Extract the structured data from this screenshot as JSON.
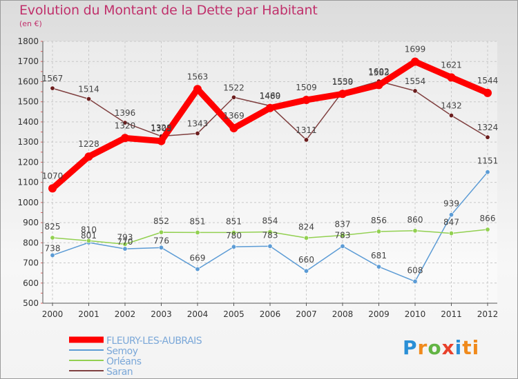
{
  "title": "Evolution du Montant de la Dette par Habitant",
  "subtitle": "(en €)",
  "logo": [
    "P",
    "r",
    "o",
    "x",
    "i",
    "ti"
  ],
  "chart_data": {
    "type": "line",
    "x": [
      "2000",
      "2001",
      "2002",
      "2003",
      "2004",
      "2005",
      "2006",
      "2007",
      "2008",
      "2009",
      "2010",
      "2011",
      "2012"
    ],
    "ylim": [
      500,
      1800
    ],
    "yticks": [
      500,
      600,
      700,
      800,
      900,
      1000,
      1100,
      1200,
      1300,
      1400,
      1500,
      1600,
      1700,
      1800
    ],
    "grid": true,
    "legend_position": "bottom-left",
    "series": [
      {
        "name": "FLEURY-LES-AUBRAIS",
        "color": "#ff0000",
        "values": [
          1070,
          1228,
          1320,
          1305,
          1563,
          1369,
          1469,
          1509,
          1539,
          1583,
          1699,
          1621,
          1544
        ],
        "labels": [
          "1070",
          "1228",
          "1320",
          "1305",
          "1563",
          "1369",
          "1469",
          "1509",
          "1539",
          "1583",
          "1699",
          "1621",
          "1544"
        ]
      },
      {
        "name": "Semoy",
        "color": "#5b9bd5",
        "values": [
          738,
          801,
          770,
          776,
          669,
          780,
          783,
          660,
          783,
          681,
          608,
          939,
          1151
        ],
        "labels": [
          "738",
          "801",
          "770",
          "776",
          "669",
          "780",
          "783",
          "660",
          "783",
          "681",
          "608",
          "939",
          "1151"
        ]
      },
      {
        "name": "Orléans",
        "color": "#92d050",
        "values": [
          825,
          810,
          793,
          852,
          851,
          851,
          854,
          824,
          837,
          856,
          860,
          847,
          866
        ],
        "labels": [
          "825",
          "810",
          "793",
          "852",
          "851",
          "851",
          "854",
          "824",
          "837",
          "856",
          "860",
          "847",
          "866"
        ]
      },
      {
        "name": "Saran",
        "color": "#7f3f3f",
        "values": [
          1567,
          1514,
          1396,
          1329,
          1343,
          1522,
          1480,
          1311,
          1550,
          1602,
          1554,
          1432,
          1324
        ],
        "labels": [
          "1567",
          "1514",
          "1396",
          "1329",
          "1343",
          "1522",
          "1480",
          "1311",
          "1550",
          "1602",
          "1554",
          "1432",
          "1324"
        ]
      }
    ]
  }
}
